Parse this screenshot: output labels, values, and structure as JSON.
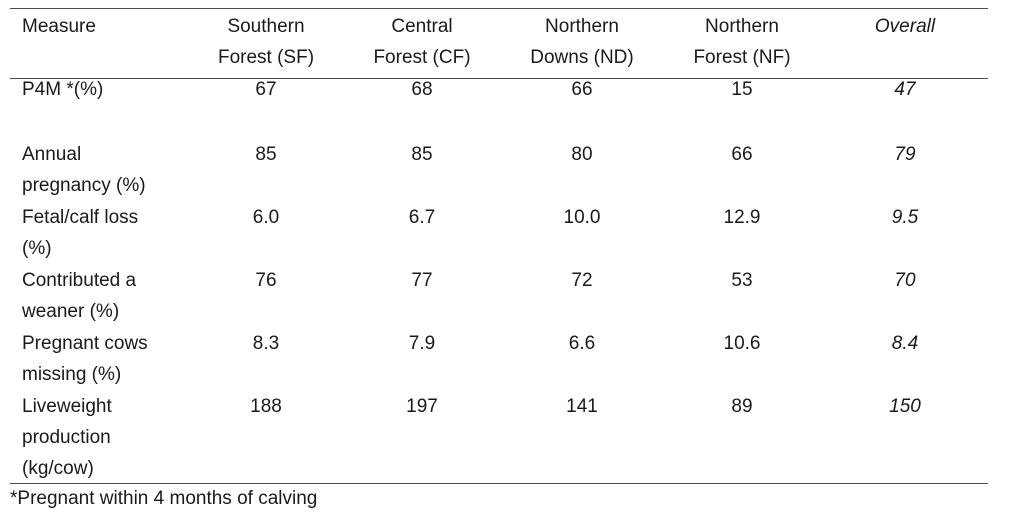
{
  "table": {
    "headers": [
      "Measure",
      "Southern Forest (SF)",
      "Central Forest (CF)",
      "Northern Downs (ND)",
      "Northern Forest (NF)",
      "Overall"
    ],
    "header_lines": [
      [
        "Measure"
      ],
      [
        "Southern",
        "Forest (SF)"
      ],
      [
        "Central",
        "Forest (CF)"
      ],
      [
        "Northern",
        "Downs (ND)"
      ],
      [
        "Northern",
        "Forest (NF)"
      ],
      [
        "Overall"
      ]
    ],
    "rows": [
      {
        "measure": "P4M *(%)",
        "sf": "67",
        "cf": "68",
        "nd": "66",
        "nf": "15",
        "overall": "47"
      },
      {
        "measure": "Annual pregnancy (%)",
        "sf": "85",
        "cf": "85",
        "nd": "80",
        "nf": "66",
        "overall": "79"
      },
      {
        "measure": "Fetal/calf loss (%)",
        "sf": "6.0",
        "cf": "6.7",
        "nd": "10.0",
        "nf": "12.9",
        "overall": "9.5"
      },
      {
        "measure": "Contributed a weaner (%)",
        "sf": "76",
        "cf": "77",
        "nd": "72",
        "nf": "53",
        "overall": "70"
      },
      {
        "measure": "Pregnant cows missing (%)",
        "sf": "8.3",
        "cf": "7.9",
        "nd": "6.6",
        "nf": "10.6",
        "overall": "8.4"
      },
      {
        "measure": "Liveweight production (kg/cow)",
        "sf": "188",
        "cf": "197",
        "nd": "141",
        "nf": "89",
        "overall": "150"
      }
    ],
    "row_label_lines": [
      [
        "P4M *(%)"
      ],
      [
        "Annual",
        "pregnancy (%)"
      ],
      [
        "Fetal/calf loss",
        "(%)"
      ],
      [
        "Contributed a",
        "weaner (%)"
      ],
      [
        "Pregnant cows",
        "missing (%)"
      ],
      [
        "Liveweight",
        "production",
        "(kg/cow)"
      ]
    ]
  },
  "footnote": "*Pregnant within 4 months of calving"
}
